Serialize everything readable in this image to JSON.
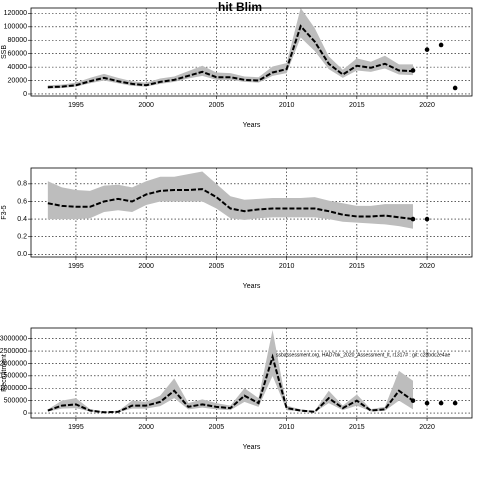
{
  "title": "hit Blim",
  "chart_data": [
    {
      "type": "line",
      "ylabel": "SSB",
      "xlabel": "Years",
      "x": [
        1993,
        1994,
        1995,
        1996,
        1997,
        1998,
        1999,
        2000,
        2001,
        2002,
        2003,
        2004,
        2005,
        2006,
        2007,
        2008,
        2009,
        2010,
        2011,
        2012,
        2013,
        2014,
        2015,
        2016,
        2017,
        2018,
        2019
      ],
      "values": [
        10000,
        11000,
        13000,
        19000,
        24000,
        19000,
        15000,
        13000,
        18000,
        21000,
        27000,
        33000,
        25000,
        25000,
        21000,
        20000,
        32000,
        37000,
        101000,
        78000,
        45000,
        29000,
        42000,
        39000,
        45000,
        35000,
        34000
      ],
      "lower": [
        8000,
        9000,
        11000,
        16000,
        20000,
        16000,
        12000,
        11000,
        15000,
        18000,
        23000,
        27000,
        21000,
        21000,
        18000,
        17000,
        27000,
        31000,
        84000,
        64000,
        37000,
        24000,
        35000,
        33000,
        38000,
        29000,
        28000
      ],
      "upper": [
        13000,
        14000,
        17000,
        24000,
        30000,
        24000,
        19000,
        17000,
        23000,
        26000,
        34000,
        42000,
        32000,
        31000,
        26000,
        25000,
        41000,
        46000,
        128000,
        98000,
        56000,
        36000,
        53000,
        48000,
        57000,
        44000,
        44000
      ],
      "points_x": [
        2019,
        2020,
        2021,
        2022
      ],
      "points_y": [
        35000,
        66000,
        73000,
        9000
      ],
      "xlim": [
        1991.8,
        2023.2
      ],
      "xticks": [
        1995,
        2000,
        2005,
        2010,
        2015,
        2020
      ],
      "ylim": [
        -3000,
        128000
      ],
      "yticks": [
        0,
        20000,
        40000,
        60000,
        80000,
        100000,
        120000
      ],
      "color": "#000000",
      "band_color": "#bdbdbd",
      "grid": true
    },
    {
      "type": "line",
      "ylabel": "F3-5",
      "xlabel": "Years",
      "x": [
        1993,
        1994,
        1995,
        1996,
        1997,
        1998,
        1999,
        2000,
        2001,
        2002,
        2003,
        2004,
        2005,
        2006,
        2007,
        2008,
        2009,
        2010,
        2011,
        2012,
        2013,
        2014,
        2015,
        2016,
        2017,
        2018,
        2019
      ],
      "values": [
        0.58,
        0.55,
        0.54,
        0.54,
        0.6,
        0.63,
        0.6,
        0.68,
        0.72,
        0.73,
        0.73,
        0.74,
        0.65,
        0.52,
        0.49,
        0.51,
        0.52,
        0.52,
        0.52,
        0.52,
        0.49,
        0.45,
        0.43,
        0.43,
        0.44,
        0.42,
        0.4
      ],
      "lower": [
        0.4,
        0.4,
        0.4,
        0.41,
        0.48,
        0.5,
        0.48,
        0.56,
        0.6,
        0.6,
        0.6,
        0.6,
        0.52,
        0.41,
        0.39,
        0.41,
        0.42,
        0.42,
        0.42,
        0.42,
        0.4,
        0.37,
        0.36,
        0.35,
        0.34,
        0.32,
        0.29
      ],
      "upper": [
        0.83,
        0.76,
        0.73,
        0.72,
        0.78,
        0.79,
        0.76,
        0.83,
        0.88,
        0.88,
        0.91,
        0.94,
        0.8,
        0.66,
        0.62,
        0.63,
        0.64,
        0.64,
        0.64,
        0.65,
        0.61,
        0.58,
        0.55,
        0.55,
        0.57,
        0.57,
        0.57
      ],
      "points_x": [
        2019,
        2020
      ],
      "points_y": [
        0.4,
        0.4
      ],
      "xlim": [
        1991.8,
        2023.2
      ],
      "xticks": [
        1995,
        2000,
        2005,
        2010,
        2015,
        2020
      ],
      "ylim": [
        -0.03,
        0.98
      ],
      "yticks": [
        {
          "value": 0,
          "label": "0.0"
        },
        0.2,
        0.4,
        0.6,
        0.8
      ],
      "color": "#000000",
      "band_color": "#bdbdbd",
      "grid": true
    },
    {
      "type": "line",
      "ylabel": "Recruitment",
      "xlabel": "Years",
      "annotation": "ssbassessment.org, HAD7bk_2020_Assessment_lt, r1317# : git: c28bdc2e4ae",
      "x": [
        1993,
        1994,
        1995,
        1996,
        1997,
        1998,
        1999,
        2000,
        2001,
        2002,
        2003,
        2004,
        2005,
        2006,
        2007,
        2008,
        2009,
        2010,
        2011,
        2012,
        2013,
        2014,
        2015,
        2016,
        2017,
        2018,
        2019
      ],
      "values": [
        100000,
        300000,
        350000,
        100000,
        30000,
        50000,
        300000,
        300000,
        450000,
        900000,
        250000,
        350000,
        250000,
        200000,
        700000,
        400000,
        2260000,
        200000,
        100000,
        50000,
        600000,
        200000,
        500000,
        100000,
        150000,
        900000,
        500000
      ],
      "lower": [
        60000,
        180000,
        200000,
        60000,
        15000,
        30000,
        180000,
        180000,
        280000,
        600000,
        150000,
        220000,
        150000,
        120000,
        450000,
        250000,
        1500000,
        120000,
        60000,
        30000,
        400000,
        120000,
        300000,
        60000,
        90000,
        500000,
        150000
      ],
      "upper": [
        150000,
        500000,
        600000,
        160000,
        50000,
        80000,
        500000,
        450000,
        700000,
        1400000,
        400000,
        550000,
        400000,
        300000,
        1000000,
        600000,
        3350000,
        300000,
        150000,
        80000,
        900000,
        300000,
        750000,
        160000,
        250000,
        1700000,
        1300000
      ],
      "points_x": [
        2019,
        2020,
        2021,
        2022
      ],
      "points_y": [
        500000,
        400000,
        400000,
        400000
      ],
      "xlim": [
        1991.8,
        2023.2
      ],
      "xticks": [
        1995,
        2000,
        2005,
        2010,
        2015,
        2020
      ],
      "ylim": [
        -200000,
        3430000
      ],
      "yticks": [
        0,
        500000,
        1000000,
        1500000,
        2000000,
        2500000,
        3000000
      ],
      "color": "#000000",
      "band_color": "#bdbdbd",
      "grid": true
    }
  ]
}
